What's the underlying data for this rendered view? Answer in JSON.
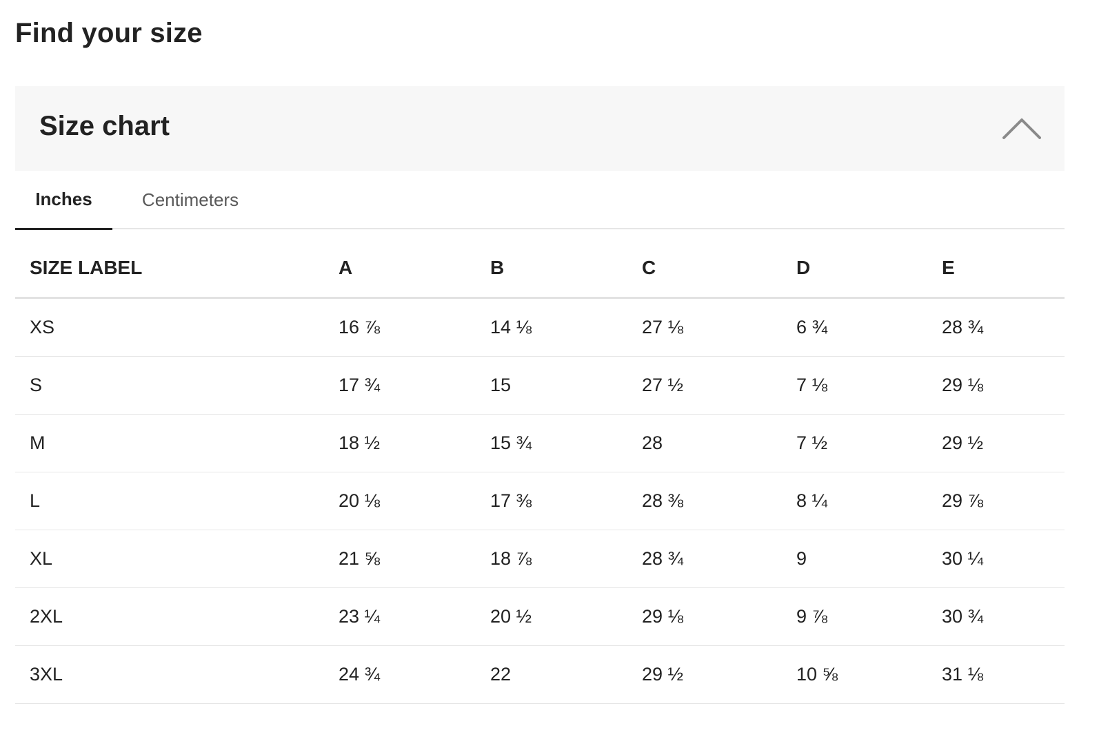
{
  "page": {
    "title": "Find your size"
  },
  "accordion": {
    "title": "Size chart",
    "toggle_icon": "chevron-up-icon",
    "expanded": true
  },
  "tabs": [
    {
      "label": "Inches",
      "active": true
    },
    {
      "label": "Centimeters",
      "active": false
    }
  ],
  "table": {
    "headers": [
      "SIZE LABEL",
      "A",
      "B",
      "C",
      "D",
      "E"
    ],
    "rows": [
      [
        "XS",
        "16 ⅞",
        "14 ⅛",
        "27 ⅛",
        "6 ¾",
        "28 ¾"
      ],
      [
        "S",
        "17 ¾",
        "15",
        "27 ½",
        "7 ⅛",
        "29 ⅛"
      ],
      [
        "M",
        "18 ½",
        "15 ¾",
        "28",
        "7 ½",
        "29 ½"
      ],
      [
        "L",
        "20 ⅛",
        "17 ⅜",
        "28 ⅜",
        "8 ¼",
        "29 ⅞"
      ],
      [
        "XL",
        "21 ⅝",
        "18 ⅞",
        "28 ¾",
        "9",
        "30 ¼"
      ],
      [
        "2XL",
        "23 ¼",
        "20 ½",
        "29 ⅛",
        "9 ⅞",
        "30 ¾"
      ],
      [
        "3XL",
        "24 ¾",
        "22",
        "29 ½",
        "10 ⅝",
        "31 ⅛"
      ]
    ]
  },
  "colors": {
    "text": "#222222",
    "muted_text": "#595959",
    "header_bg": "#f7f7f7",
    "divider": "#e6e6e6",
    "icon": "#8a8a8a"
  }
}
